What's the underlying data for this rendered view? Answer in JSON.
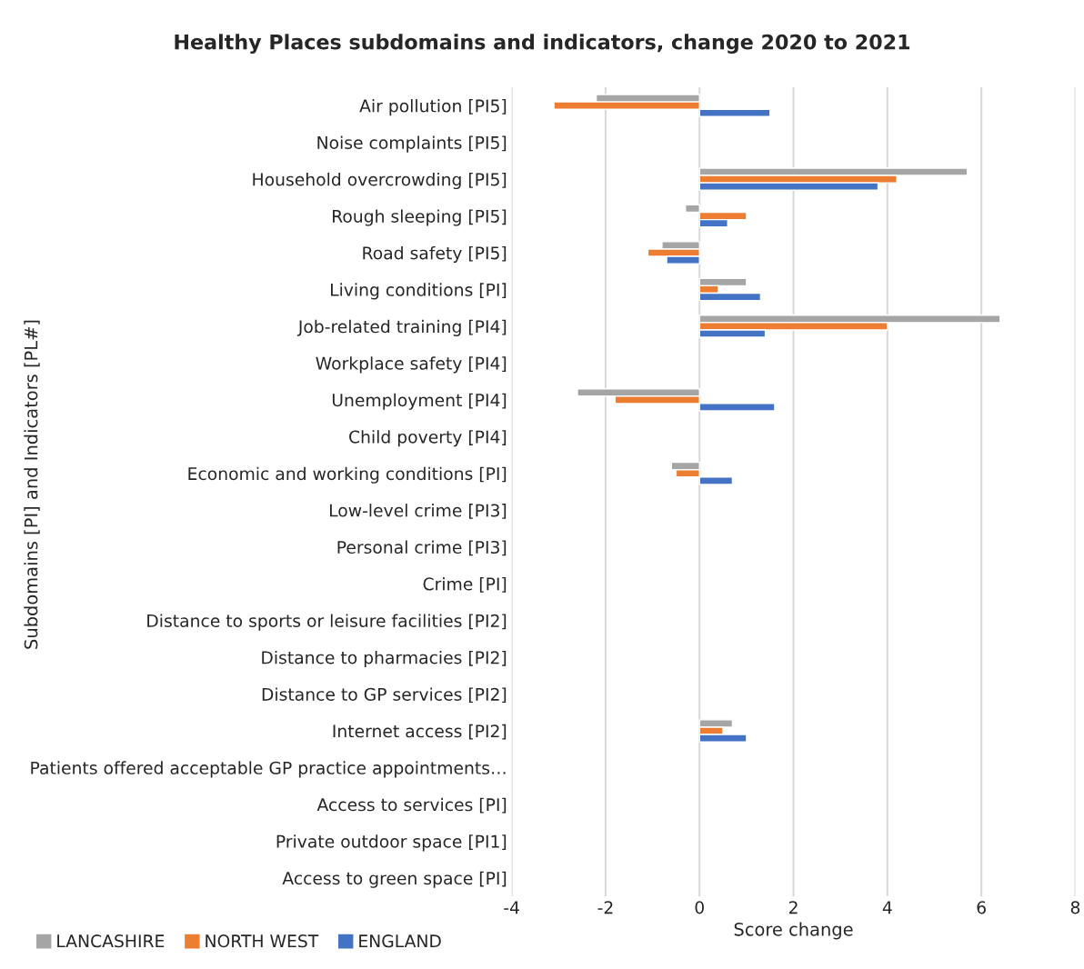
{
  "chart_data": {
    "type": "bar",
    "orientation": "horizontal",
    "title": "Healthy Places subdomains and indicators, change 2020 to 2021",
    "xlabel": "Score change",
    "ylabel": "Subdomains [PI] and Indicators [PL#]",
    "categories": [
      "Air pollution [PI5]",
      "Noise complaints [PI5]",
      "Household overcrowding [PI5]",
      "Rough sleeping [PI5]",
      "Road safety [PI5]",
      "Living conditions [PI]",
      "Job-related training [PI4]",
      "Workplace safety [PI4]",
      "Unemployment [PI4]",
      "Child poverty [PI4]",
      "Economic and working conditions [PI]",
      "Low-level crime [PI3]",
      "Personal crime [PI3]",
      "Crime [PI]",
      "Distance to sports or leisure facilities [PI2]",
      "Distance to pharmacies [PI2]",
      "Distance to GP services [PI2]",
      "Internet access [PI2]",
      "Patients offered acceptable GP practice appointments…",
      "Access to services [PI]",
      "Private outdoor space [PI1]",
      "Access to green space [PI]"
    ],
    "series": [
      {
        "name": "LANCASHIRE",
        "color": "#a5a5a5",
        "values": [
          -2.2,
          null,
          5.7,
          -0.3,
          -0.8,
          1.0,
          6.4,
          null,
          -2.6,
          null,
          -0.6,
          null,
          null,
          null,
          null,
          null,
          null,
          0.7,
          null,
          null,
          null,
          null
        ]
      },
      {
        "name": "NORTH WEST",
        "color": "#ed7d31",
        "values": [
          -3.1,
          null,
          4.2,
          1.0,
          -1.1,
          0.4,
          4.0,
          null,
          -1.8,
          null,
          -0.5,
          null,
          null,
          null,
          null,
          null,
          null,
          0.5,
          null,
          null,
          null,
          null
        ]
      },
      {
        "name": "ENGLAND",
        "color": "#4472c4",
        "values": [
          1.5,
          null,
          3.8,
          0.6,
          -0.7,
          1.3,
          1.4,
          null,
          1.6,
          null,
          0.7,
          null,
          null,
          null,
          null,
          null,
          null,
          1.0,
          null,
          null,
          null,
          null
        ]
      }
    ],
    "xlim": [
      -4,
      8
    ],
    "xticks": [
      -4,
      -2,
      0,
      2,
      4,
      6,
      8
    ],
    "grid": "x",
    "legend": "bottom left"
  }
}
